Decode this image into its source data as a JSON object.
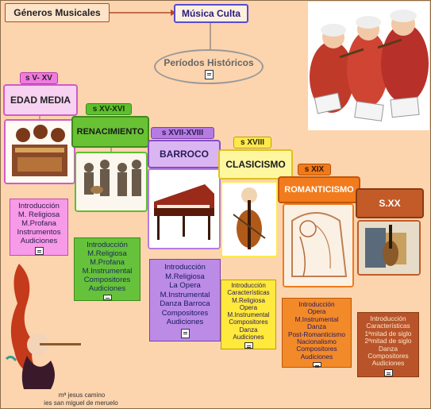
{
  "colors": {
    "background": "#fcd4ae",
    "pink": "#f07be0",
    "green": "#5ebf2e",
    "purple": "#b57be3",
    "yellow": "#ffee44",
    "orange": "#f07a1a",
    "brown": "#c15b2a"
  },
  "header": {
    "generos": "Géneros Musicales",
    "musica_culta": "Música Culta",
    "periodos": "Períodos Históricos"
  },
  "eras": [
    {
      "century": "s V- XV",
      "name": "EDAD MEDIA",
      "items": [
        "Introducción",
        "M. Religiosa",
        "M.Profana",
        "Instrumentos",
        "Audiciones"
      ]
    },
    {
      "century": "s XV-XVI",
      "name": "RENACIMIENTO",
      "items": [
        "Introducción",
        "M.Religiosa",
        "M.Profana",
        "M.Instrumental",
        "Compositores",
        "Audiciones"
      ]
    },
    {
      "century": "s XVII-XVIII",
      "name": "BARROCO",
      "items": [
        "Introducción",
        "M.Religiosa",
        "La Opera",
        "M.Instrumental",
        "Danza Barroca",
        "Compositores",
        "Audiciones"
      ]
    },
    {
      "century": "s XVIII",
      "name": "CLASICISMO",
      "items": [
        "Introducción",
        "Características",
        "M.Religiosa",
        "Opera",
        "M.Instrumental",
        "Compositores",
        "Danza",
        "Audiciones"
      ]
    },
    {
      "century": "s XIX",
      "name": "ROMANTICISMO",
      "items": [
        "Introducción",
        "Opera",
        "M.Instrumental",
        "Danza",
        "Post-Romanticismo",
        "Nacionalismo",
        "Compositores",
        "Audiciones"
      ]
    },
    {
      "century": "",
      "name": "S.XX",
      "items": [
        "Introducción",
        "Características",
        "1ªmitad de siglo",
        "2ªmitad de siglo",
        "Danza",
        "Compositores",
        "Audiciones"
      ]
    }
  ],
  "credit": {
    "line1": "mª jesus camino",
    "line2": "ies san miguel de meruelo"
  }
}
